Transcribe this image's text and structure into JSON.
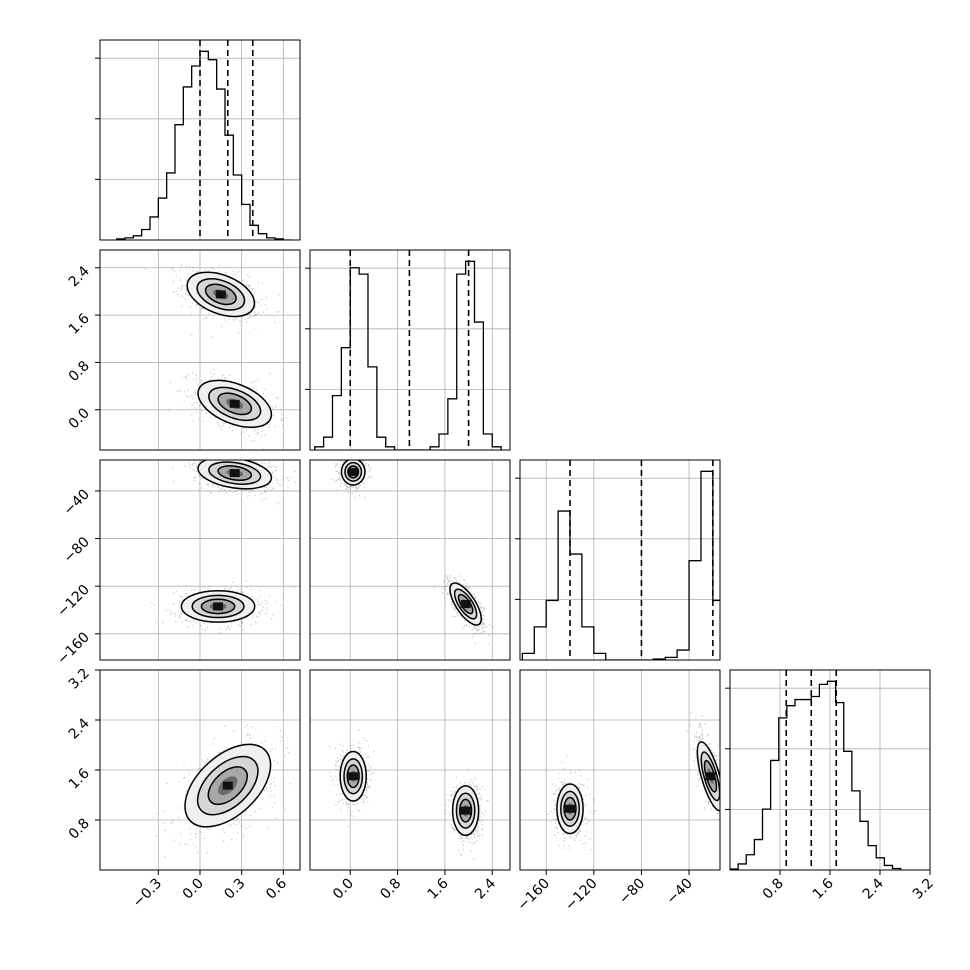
{
  "chart_data": {
    "type": "corner",
    "parameters": [
      {
        "ticks": [
          -0.3,
          0.0,
          0.3,
          0.6
        ],
        "tick_labels": [
          "−0.3",
          "0.0",
          "0.3",
          "0.6"
        ],
        "range": [
          -0.72,
          0.72
        ]
      },
      {
        "ticks": [
          0.0,
          0.8,
          1.6,
          2.4
        ],
        "tick_labels": [
          "0.0",
          "0.8",
          "1.6",
          "2.4"
        ],
        "range": [
          -0.68,
          2.7
        ]
      },
      {
        "ticks": [
          -160,
          -120,
          -80,
          -40
        ],
        "tick_labels": [
          "−160",
          "−120",
          "−80",
          "−40"
        ],
        "range": [
          -182,
          -14
        ]
      },
      {
        "ticks": [
          0.8,
          1.6,
          2.4,
          3.2
        ],
        "tick_labels": [
          "0.8",
          "1.6",
          "2.4",
          "3.2"
        ],
        "range": [
          0.0,
          3.2
        ]
      }
    ],
    "histograms": [
      {
        "bins": [
          -0.6,
          -0.54,
          -0.48,
          -0.42,
          -0.36,
          -0.3,
          -0.24,
          -0.18,
          -0.12,
          -0.06,
          0.0,
          0.06,
          0.12,
          0.18,
          0.24,
          0.3,
          0.36,
          0.42,
          0.48,
          0.54,
          0.6,
          0.66
        ],
        "counts": [
          0.5,
          1,
          2,
          5,
          11,
          20,
          32,
          55,
          73,
          83,
          90,
          86,
          72,
          50,
          31,
          17,
          7,
          3,
          1,
          0.5,
          0
        ],
        "quantiles": [
          0.0,
          0.2,
          0.38
        ]
      },
      {
        "bins": [
          -0.6,
          -0.45,
          -0.3,
          -0.15,
          0.0,
          0.15,
          0.3,
          0.45,
          0.6,
          0.75,
          0.9,
          1.05,
          1.2,
          1.35,
          1.5,
          1.65,
          1.8,
          1.95,
          2.1,
          2.25,
          2.4,
          2.55
        ],
        "counts": [
          1,
          4,
          17,
          32,
          57,
          55,
          26,
          4,
          1,
          0,
          0,
          0,
          0,
          1,
          5,
          16,
          55,
          59,
          40,
          5,
          1
        ],
        "quantiles": [
          0.0,
          1.0,
          2.0
        ]
      },
      {
        "bins": [
          -180,
          -170,
          -160,
          -150,
          -140,
          -130,
          -120,
          -110,
          -100,
          -90,
          -80,
          -70,
          -60,
          -50,
          -40,
          -30,
          -20,
          -10
        ],
        "counts": [
          2,
          10,
          18,
          45,
          32,
          10,
          2,
          0,
          0,
          0,
          0,
          0.3,
          0.8,
          3,
          30,
          57,
          18
        ],
        "quantiles": [
          -140,
          -80,
          -20
        ]
      },
      {
        "bins": [
          0.0,
          0.13,
          0.26,
          0.39,
          0.52,
          0.65,
          0.78,
          0.91,
          1.04,
          1.17,
          1.3,
          1.43,
          1.56,
          1.69,
          1.82,
          1.95,
          2.08,
          2.21,
          2.34,
          2.47,
          2.6,
          2.73
        ],
        "counts": [
          0.3,
          2,
          5,
          10,
          20,
          36,
          50,
          54,
          56,
          56,
          57,
          61,
          62,
          55,
          39,
          26,
          16,
          8,
          4,
          1.5,
          0.5
        ],
        "quantiles": [
          0.9,
          1.3,
          1.7
        ]
      }
    ],
    "pairs": [
      {
        "row": 1,
        "col": 0,
        "modes": [
          {
            "mu": [
              0.15,
              1.95
            ],
            "sd": [
              0.11,
              0.17
            ],
            "rho": -0.4,
            "w": 1
          },
          {
            "mu": [
              0.25,
              0.1
            ],
            "sd": [
              0.12,
              0.18
            ],
            "rho": -0.45,
            "w": 1
          }
        ]
      },
      {
        "row": 2,
        "col": 0,
        "modes": [
          {
            "mu": [
              0.25,
              -25
            ],
            "sd": [
              0.12,
              6
            ],
            "rho": -0.3,
            "w": 1
          },
          {
            "mu": [
              0.13,
              -137
            ],
            "sd": [
              0.12,
              6
            ],
            "rho": 0.0,
            "w": 1
          }
        ]
      },
      {
        "row": 2,
        "col": 1,
        "modes": [
          {
            "mu": [
              0.05,
              -24
            ],
            "sd": [
              0.09,
              5
            ],
            "rho": 0.0,
            "w": 1
          },
          {
            "mu": [
              1.95,
              -135
            ],
            "sd": [
              0.12,
              8
            ],
            "rho": -0.7,
            "w": 1
          }
        ]
      },
      {
        "row": 3,
        "col": 0,
        "modes": [
          {
            "mu": [
              0.2,
              1.35
            ],
            "sd": [
              0.14,
              0.3
            ],
            "rho": 0.5,
            "w": 1
          }
        ]
      },
      {
        "row": 3,
        "col": 1,
        "modes": [
          {
            "mu": [
              0.05,
              1.5
            ],
            "sd": [
              0.1,
              0.18
            ],
            "rho": 0.0,
            "w": 1
          },
          {
            "mu": [
              1.95,
              0.95
            ],
            "sd": [
              0.1,
              0.18
            ],
            "rho": 0.0,
            "w": 1
          }
        ]
      },
      {
        "row": 3,
        "col": 2,
        "modes": [
          {
            "mu": [
              -140,
              0.98
            ],
            "sd": [
              5,
              0.18
            ],
            "rho": 0.0,
            "w": 1
          },
          {
            "mu": [
              -22,
              1.5
            ],
            "sd": [
              5,
              0.25
            ],
            "rho": -0.7,
            "w": 1
          }
        ]
      }
    ]
  }
}
